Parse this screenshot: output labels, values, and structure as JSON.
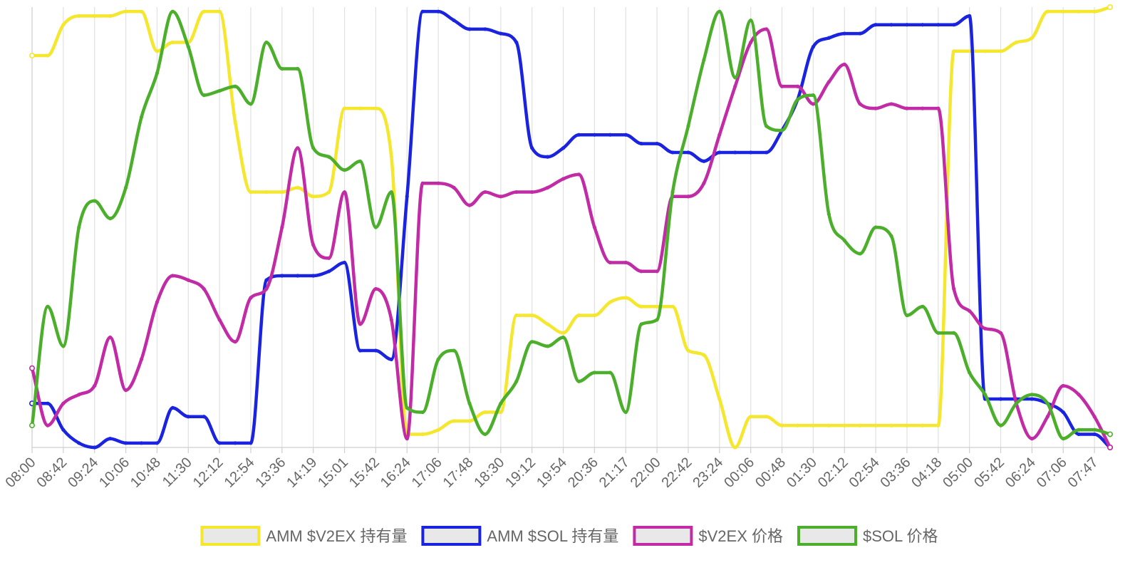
{
  "chart_data": {
    "type": "line",
    "title": "",
    "xlabel": "",
    "ylabel": "",
    "ylim": [
      0,
      1
    ],
    "y_axis_labels_visible": false,
    "grid": true,
    "legend_position": "bottom",
    "tick_labels": [
      "08:00",
      "08:42",
      "09:24",
      "10:06",
      "10:48",
      "11:30",
      "12:12",
      "12:54",
      "13:36",
      "14:19",
      "15:01",
      "15:42",
      "16:24",
      "17:06",
      "17:48",
      "18:30",
      "19:12",
      "19:54",
      "20:36",
      "21:17",
      "22:00",
      "22:42",
      "23:24",
      "00:06",
      "00:48",
      "01:30",
      "02:12",
      "02:54",
      "03:36",
      "04:18",
      "05:00",
      "05:42",
      "06:24",
      "07:06",
      "07:47"
    ],
    "series": [
      {
        "name": "AMM $V2EX 持有量",
        "color": "#f5e62e",
        "x": [
          0,
          1,
          2,
          3,
          4,
          5,
          6,
          7,
          8,
          9,
          10,
          11,
          12,
          13,
          14,
          15,
          16,
          17,
          18,
          19,
          20,
          21,
          22,
          23,
          24,
          25,
          26,
          27,
          28,
          29,
          30,
          31,
          32,
          33,
          34,
          35,
          36,
          37,
          38,
          39,
          40,
          41,
          42,
          43,
          44,
          45,
          46,
          47,
          48,
          49,
          50,
          51,
          52,
          53,
          54,
          55,
          56,
          57,
          58,
          59,
          60,
          61,
          62,
          63,
          64,
          65,
          66,
          67,
          68,
          69
        ],
        "values": [
          0.89,
          0.89,
          0.96,
          0.98,
          0.98,
          0.98,
          0.99,
          0.99,
          0.9,
          0.92,
          0.92,
          0.99,
          0.99,
          0.74,
          0.58,
          0.58,
          0.58,
          0.59,
          0.57,
          0.58,
          0.77,
          0.77,
          0.77,
          0.66,
          0.03,
          0.03,
          0.04,
          0.06,
          0.06,
          0.08,
          0.08,
          0.3,
          0.3,
          0.28,
          0.26,
          0.3,
          0.3,
          0.33,
          0.34,
          0.32,
          0.32,
          0.32,
          0.22,
          0.21,
          0.11,
          0.0,
          0.07,
          0.07,
          0.05,
          0.05,
          0.05,
          0.05,
          0.05,
          0.05,
          0.05,
          0.05,
          0.05,
          0.05,
          0.05,
          0.9,
          0.9,
          0.9,
          0.9,
          0.92,
          0.93,
          0.99,
          0.99,
          0.99,
          0.99,
          1.0
        ]
      },
      {
        "name": "AMM $SOL 持有量",
        "color": "#1a24e0",
        "x": [
          0,
          1,
          2,
          3,
          4,
          5,
          6,
          7,
          8,
          9,
          10,
          11,
          12,
          13,
          14,
          15,
          16,
          17,
          18,
          19,
          20,
          21,
          22,
          23,
          24,
          25,
          26,
          27,
          28,
          29,
          30,
          31,
          32,
          33,
          34,
          35,
          36,
          37,
          38,
          39,
          40,
          41,
          42,
          43,
          44,
          45,
          46,
          47,
          48,
          49,
          50,
          51,
          52,
          53,
          54,
          55,
          56,
          57,
          58,
          59,
          60,
          61,
          62,
          63,
          64,
          65,
          66,
          67,
          68,
          69
        ],
        "values": [
          0.1,
          0.1,
          0.04,
          0.01,
          0.0,
          0.02,
          0.01,
          0.01,
          0.01,
          0.09,
          0.07,
          0.07,
          0.01,
          0.01,
          0.01,
          0.38,
          0.39,
          0.39,
          0.39,
          0.4,
          0.42,
          0.22,
          0.22,
          0.2,
          0.57,
          0.99,
          0.99,
          0.97,
          0.95,
          0.95,
          0.94,
          0.92,
          0.68,
          0.66,
          0.68,
          0.71,
          0.71,
          0.71,
          0.71,
          0.69,
          0.69,
          0.67,
          0.67,
          0.65,
          0.67,
          0.67,
          0.67,
          0.67,
          0.72,
          0.79,
          0.91,
          0.93,
          0.94,
          0.94,
          0.96,
          0.96,
          0.96,
          0.96,
          0.96,
          0.96,
          0.98,
          0.11,
          0.11,
          0.11,
          0.11,
          0.1,
          0.08,
          0.03,
          0.03,
          0.0
        ]
      },
      {
        "name": "$V2EX 价格",
        "color": "#c22ba6",
        "x": [
          0,
          1,
          2,
          3,
          4,
          5,
          6,
          7,
          8,
          9,
          10,
          11,
          12,
          13,
          14,
          15,
          16,
          17,
          18,
          19,
          20,
          21,
          22,
          23,
          24,
          25,
          26,
          27,
          28,
          29,
          30,
          31,
          32,
          33,
          34,
          35,
          36,
          37,
          38,
          39,
          40,
          41,
          42,
          43,
          44,
          45,
          46,
          47,
          48,
          49,
          50,
          51,
          52,
          53,
          54,
          55,
          56,
          57,
          58,
          59,
          60,
          61,
          62,
          63,
          64,
          65,
          66,
          67,
          68,
          69
        ],
        "values": [
          0.18,
          0.05,
          0.1,
          0.12,
          0.14,
          0.25,
          0.13,
          0.2,
          0.33,
          0.39,
          0.38,
          0.36,
          0.29,
          0.24,
          0.34,
          0.36,
          0.5,
          0.68,
          0.46,
          0.43,
          0.58,
          0.28,
          0.36,
          0.29,
          0.02,
          0.6,
          0.6,
          0.59,
          0.55,
          0.58,
          0.57,
          0.58,
          0.58,
          0.59,
          0.61,
          0.62,
          0.5,
          0.42,
          0.42,
          0.4,
          0.4,
          0.57,
          0.57,
          0.6,
          0.71,
          0.82,
          0.92,
          0.95,
          0.82,
          0.82,
          0.78,
          0.83,
          0.87,
          0.78,
          0.77,
          0.78,
          0.77,
          0.77,
          0.77,
          0.36,
          0.31,
          0.27,
          0.26,
          0.1,
          0.02,
          0.07,
          0.14,
          0.12,
          0.07,
          0.0
        ]
      },
      {
        "name": "$SOL 价格",
        "color": "#4caf2c",
        "x": [
          0,
          1,
          2,
          3,
          4,
          5,
          6,
          7,
          8,
          9,
          10,
          11,
          12,
          13,
          14,
          15,
          16,
          17,
          18,
          19,
          20,
          21,
          22,
          23,
          24,
          25,
          26,
          27,
          28,
          29,
          30,
          31,
          32,
          33,
          34,
          35,
          36,
          37,
          38,
          39,
          40,
          41,
          42,
          43,
          44,
          45,
          46,
          47,
          48,
          49,
          50,
          51,
          52,
          53,
          54,
          55,
          56,
          57,
          58,
          59,
          60,
          61,
          62,
          63,
          64,
          65,
          66,
          67,
          68,
          69
        ],
        "values": [
          0.05,
          0.32,
          0.23,
          0.5,
          0.56,
          0.52,
          0.59,
          0.75,
          0.85,
          0.99,
          0.91,
          0.8,
          0.81,
          0.82,
          0.78,
          0.92,
          0.86,
          0.86,
          0.68,
          0.66,
          0.63,
          0.65,
          0.5,
          0.58,
          0.09,
          0.08,
          0.2,
          0.22,
          0.1,
          0.03,
          0.1,
          0.15,
          0.24,
          0.23,
          0.25,
          0.15,
          0.17,
          0.17,
          0.08,
          0.28,
          0.29,
          0.58,
          0.73,
          0.88,
          0.99,
          0.84,
          0.97,
          0.73,
          0.72,
          0.79,
          0.8,
          0.53,
          0.47,
          0.44,
          0.5,
          0.48,
          0.3,
          0.32,
          0.26,
          0.26,
          0.17,
          0.12,
          0.05,
          0.1,
          0.12,
          0.1,
          0.02,
          0.04,
          0.04,
          0.03
        ]
      }
    ]
  }
}
